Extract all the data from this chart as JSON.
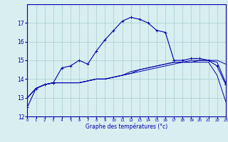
{
  "xlabel": "Graphe des températures (°c)",
  "x_hours": [
    0,
    1,
    2,
    3,
    4,
    5,
    6,
    7,
    8,
    9,
    10,
    11,
    12,
    13,
    14,
    15,
    16,
    17,
    18,
    19,
    20,
    21,
    22,
    23
  ],
  "temp_main": [
    12.5,
    13.5,
    13.7,
    13.8,
    14.6,
    14.7,
    15.0,
    14.8,
    15.5,
    16.1,
    16.6,
    17.1,
    17.3,
    17.2,
    17.0,
    16.6,
    16.5,
    15.0,
    15.0,
    15.1,
    15.1,
    15.0,
    14.7,
    13.7
  ],
  "temp_line2": [
    13.0,
    13.5,
    13.7,
    13.8,
    13.8,
    13.8,
    13.8,
    13.9,
    14.0,
    14.0,
    14.1,
    14.2,
    14.3,
    14.4,
    14.5,
    14.6,
    14.7,
    14.8,
    14.9,
    14.9,
    15.0,
    15.0,
    15.0,
    14.8
  ],
  "temp_line3": [
    13.0,
    13.5,
    13.7,
    13.8,
    13.8,
    13.8,
    13.8,
    13.9,
    14.0,
    14.0,
    14.1,
    14.2,
    14.3,
    14.5,
    14.6,
    14.7,
    14.8,
    14.9,
    14.9,
    15.0,
    15.0,
    15.0,
    14.9,
    13.8
  ],
  "temp_line4": [
    13.0,
    13.5,
    13.7,
    13.8,
    13.8,
    13.8,
    13.8,
    13.9,
    14.0,
    14.0,
    14.1,
    14.2,
    14.4,
    14.5,
    14.6,
    14.7,
    14.8,
    14.9,
    14.9,
    14.9,
    14.9,
    14.9,
    14.2,
    12.8
  ],
  "bg_color": "#d8eef0",
  "line_color": "#0000aa",
  "grid_color": "#aacccc",
  "ylim": [
    12,
    18
  ],
  "yticks": [
    12,
    13,
    14,
    15,
    16,
    17
  ],
  "xtick_labels": [
    "0",
    "1",
    "2",
    "3",
    "4",
    "5",
    "6",
    "7",
    "8",
    "9",
    "10",
    "11",
    "12",
    "13",
    "14",
    "15",
    "16",
    "17",
    "18",
    "19",
    "20",
    "21",
    "22",
    "23"
  ]
}
